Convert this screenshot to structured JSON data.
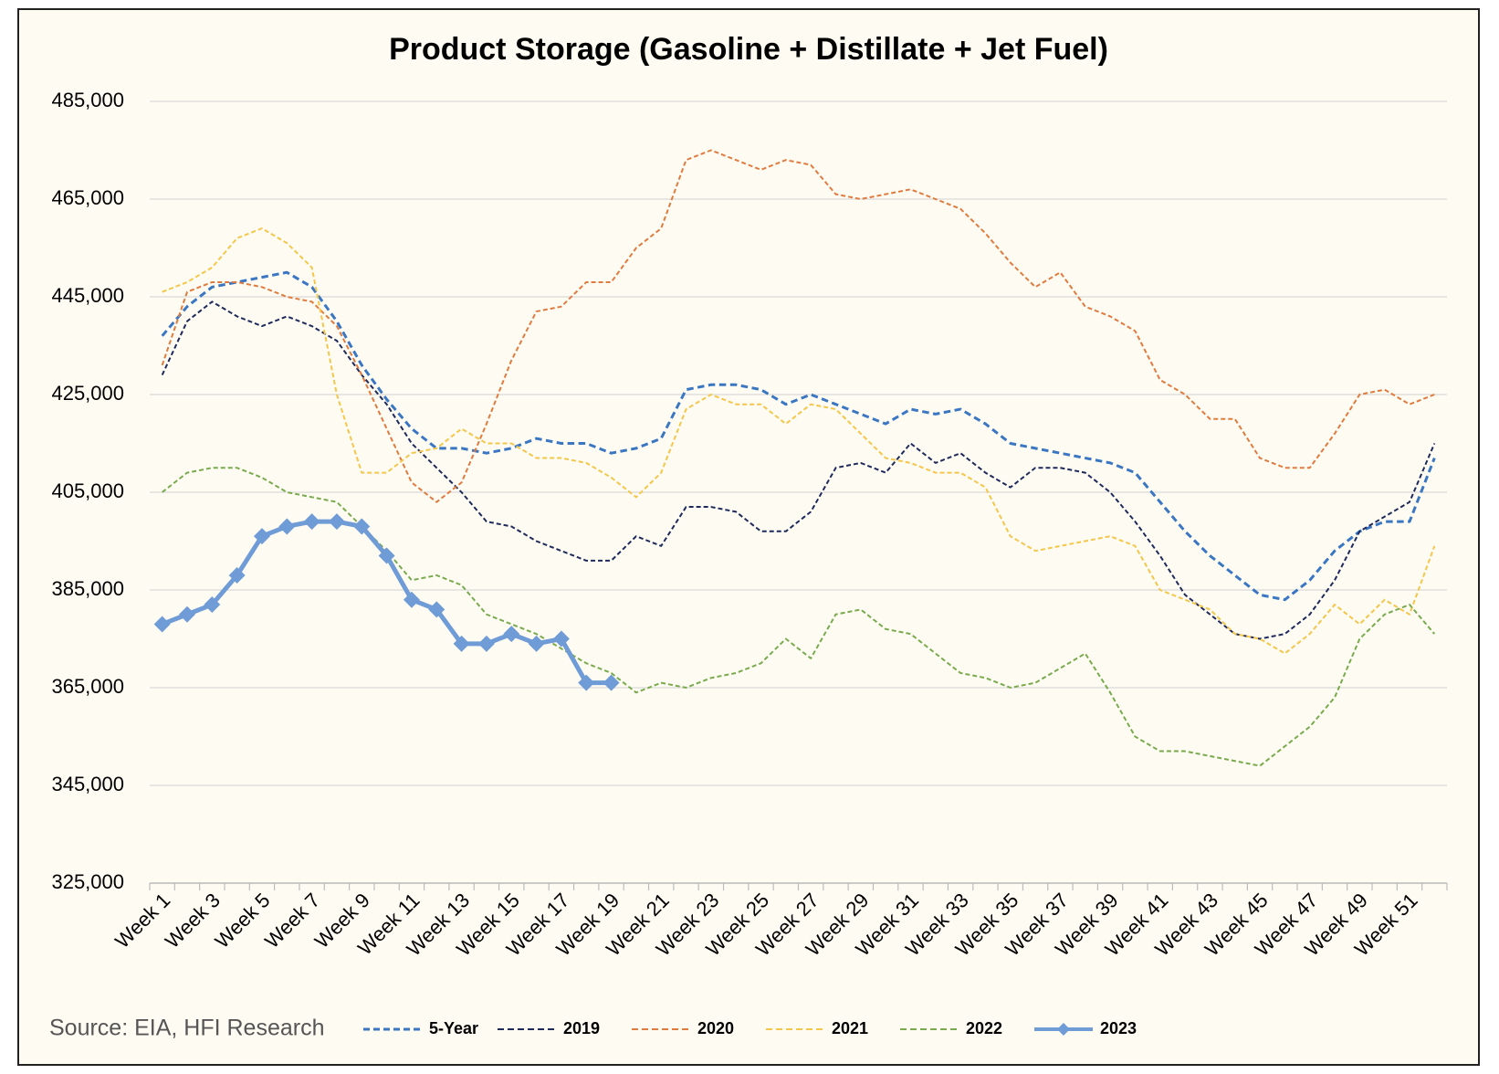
{
  "chart_data": {
    "type": "line",
    "title": "Product Storage (Gasoline + Distillate + Jet Fuel)",
    "source": "Source: EIA, HFI Research",
    "categories": [
      "Week 1",
      null,
      "Week 3",
      null,
      "Week 5",
      null,
      "Week 7",
      null,
      "Week 9",
      null,
      "Week 11",
      null,
      "Week 13",
      null,
      "Week 15",
      null,
      "Week 17",
      null,
      "Week 19",
      null,
      "Week 21",
      null,
      "Week 23",
      null,
      "Week 25",
      null,
      "Week 27",
      null,
      "Week 29",
      null,
      "Week 31",
      null,
      "Week 33",
      null,
      "Week 35",
      null,
      "Week 37",
      null,
      "Week 39",
      null,
      "Week 41",
      null,
      "Week 43",
      null,
      "Week 45",
      null,
      "Week 47",
      null,
      "Week 49",
      null,
      "Week 51",
      null
    ],
    "ylim": [
      325000,
      485000
    ],
    "yticks": [
      {
        "value": 325000,
        "label": "325,000"
      },
      {
        "value": 345000,
        "label": "345,000"
      },
      {
        "value": 365000,
        "label": "365,000"
      },
      {
        "value": 385000,
        "label": "385,000"
      },
      {
        "value": 405000,
        "label": "405,000"
      },
      {
        "value": 425000,
        "label": "425,000"
      },
      {
        "value": 445000,
        "label": "445,000"
      },
      {
        "value": 465000,
        "label": "465,000"
      },
      {
        "value": 485000,
        "label": "485,000"
      }
    ],
    "grid": true,
    "legend": "bottom",
    "series": [
      {
        "name": "5-Year",
        "color": "#3a76c2",
        "dashed": true,
        "width": 3,
        "values": [
          437000,
          443000,
          447000,
          448000,
          449000,
          450000,
          447000,
          440000,
          431000,
          424000,
          418000,
          414000,
          414000,
          413000,
          414000,
          416000,
          415000,
          415000,
          413000,
          414000,
          416000,
          426000,
          427000,
          427000,
          426000,
          423000,
          425000,
          423000,
          421000,
          419000,
          422000,
          421000,
          422000,
          419000,
          415000,
          414000,
          413000,
          412000,
          411000,
          409000,
          403000,
          397000,
          392000,
          388000,
          384000,
          383000,
          387000,
          393000,
          397000,
          399000,
          399000,
          412000
        ]
      },
      {
        "name": "2019",
        "color": "#1f2a5c",
        "dashed": true,
        "width": 2,
        "values": [
          429000,
          440000,
          444000,
          441000,
          439000,
          441000,
          439000,
          436000,
          429000,
          423000,
          415000,
          410000,
          405000,
          399000,
          398000,
          395000,
          393000,
          391000,
          391000,
          396000,
          394000,
          402000,
          402000,
          401000,
          397000,
          397000,
          401000,
          410000,
          411000,
          409000,
          415000,
          411000,
          413000,
          409000,
          406000,
          410000,
          410000,
          409000,
          405000,
          399000,
          392000,
          384000,
          380000,
          376000,
          375000,
          376000,
          380000,
          387000,
          397000,
          400000,
          403000,
          415000
        ]
      },
      {
        "name": "2020",
        "color": "#e07b40",
        "dashed": true,
        "width": 2,
        "values": [
          431000,
          446000,
          448000,
          448000,
          447000,
          445000,
          444000,
          439000,
          429000,
          418000,
          407000,
          403000,
          407000,
          419000,
          432000,
          442000,
          443000,
          448000,
          448000,
          455000,
          459000,
          473000,
          475000,
          473000,
          471000,
          473000,
          472000,
          466000,
          465000,
          466000,
          467000,
          465000,
          463000,
          458000,
          452000,
          447000,
          450000,
          443000,
          441000,
          438000,
          428000,
          425000,
          420000,
          420000,
          412000,
          410000,
          410000,
          417000,
          425000,
          426000,
          423000,
          425000
        ]
      },
      {
        "name": "2021",
        "color": "#f4c64b",
        "dashed": true,
        "width": 2,
        "values": [
          446000,
          448000,
          451000,
          457000,
          459000,
          456000,
          451000,
          425000,
          409000,
          409000,
          413000,
          414000,
          418000,
          415000,
          415000,
          412000,
          412000,
          411000,
          408000,
          404000,
          409000,
          422000,
          425000,
          423000,
          423000,
          419000,
          423000,
          422000,
          417000,
          412000,
          411000,
          409000,
          409000,
          406000,
          396000,
          393000,
          394000,
          395000,
          396000,
          394000,
          385000,
          383000,
          381000,
          376000,
          375000,
          372000,
          376000,
          382000,
          378000,
          383000,
          380000,
          394000
        ]
      },
      {
        "name": "2022",
        "color": "#79aa4e",
        "dashed": true,
        "width": 2,
        "values": [
          405000,
          409000,
          410000,
          410000,
          408000,
          405000,
          404000,
          403000,
          398000,
          393000,
          387000,
          388000,
          386000,
          380000,
          378000,
          376000,
          373000,
          370000,
          368000,
          364000,
          366000,
          365000,
          367000,
          368000,
          370000,
          375000,
          371000,
          380000,
          381000,
          377000,
          376000,
          372000,
          368000,
          367000,
          365000,
          366000,
          369000,
          372000,
          364000,
          355000,
          352000,
          352000,
          351000,
          350000,
          349000,
          353000,
          357000,
          363000,
          375000,
          380000,
          382000,
          376000
        ]
      },
      {
        "name": "2023",
        "color": "#6f9bd6",
        "dashed": false,
        "width": 5,
        "marker": "diamond",
        "values": [
          378000,
          380000,
          382000,
          388000,
          396000,
          398000,
          399000,
          399000,
          398000,
          392000,
          383000,
          381000,
          374000,
          374000,
          376000,
          374000,
          375000,
          366000,
          366000,
          null,
          null,
          null,
          null,
          null,
          null,
          null,
          null,
          null,
          null,
          null,
          null,
          null,
          null,
          null,
          null,
          null,
          null,
          null,
          null,
          null,
          null,
          null,
          null,
          null,
          null,
          null,
          null,
          null,
          null,
          null,
          null,
          null
        ]
      }
    ]
  }
}
